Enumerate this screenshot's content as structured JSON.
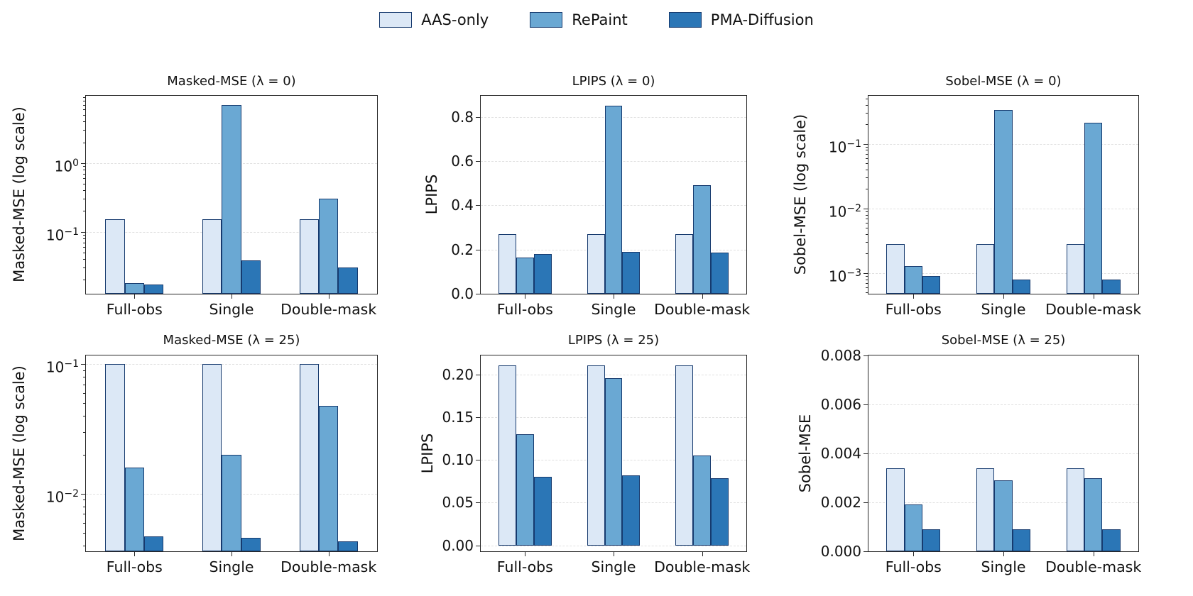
{
  "legend": {
    "position": "top-center",
    "items": [
      {
        "label": "AAS-only",
        "color": "#dce8f6"
      },
      {
        "label": "RePaint",
        "color": "#6aa8d3"
      },
      {
        "label": "PMA-Diffusion",
        "color": "#2b76b6"
      }
    ]
  },
  "colors": {
    "bar_edge": "#163a6e",
    "grid": "#e0e0e0",
    "spine": "#262626"
  },
  "chart_data": [
    {
      "type": "bar",
      "title": "Masked-MSE (λ = 0)",
      "ylabel": "Masked-MSE (log scale)",
      "xlabel": "",
      "yscale": "log",
      "grid": "horizontal-dashed",
      "categories": [
        "Full-obs",
        "Single",
        "Double-mask"
      ],
      "series": [
        {
          "name": "AAS-only",
          "values": [
            0.15,
            0.15,
            0.15
          ]
        },
        {
          "name": "RePaint",
          "values": [
            0.018,
            6.9,
            0.3
          ]
        },
        {
          "name": "PMA-Diffusion",
          "values": [
            0.017,
            0.038,
            0.03
          ]
        }
      ],
      "ylim": [
        0.0125,
        9.5
      ],
      "yticks": [
        {
          "v": 1,
          "label": "10^0"
        },
        {
          "v": 0.1,
          "label": "10^-1"
        }
      ]
    },
    {
      "type": "bar",
      "title": "LPIPS (λ = 0)",
      "ylabel": "LPIPS",
      "xlabel": "",
      "yscale": "linear",
      "grid": "horizontal-dashed",
      "categories": [
        "Full-obs",
        "Single",
        "Double-mask"
      ],
      "series": [
        {
          "name": "AAS-only",
          "values": [
            0.27,
            0.27,
            0.27
          ]
        },
        {
          "name": "RePaint",
          "values": [
            0.165,
            0.85,
            0.49
          ]
        },
        {
          "name": "PMA-Diffusion",
          "values": [
            0.18,
            0.19,
            0.185
          ]
        }
      ],
      "ylim": [
        0,
        0.895
      ],
      "yticks": [
        {
          "v": 0.8,
          "label": "0.8"
        },
        {
          "v": 0.6,
          "label": "0.6"
        },
        {
          "v": 0.4,
          "label": "0.4"
        },
        {
          "v": 0.2,
          "label": "0.2"
        },
        {
          "v": 0.0,
          "label": "0.0"
        }
      ]
    },
    {
      "type": "bar",
      "title": "Sobel-MSE (λ = 0)",
      "ylabel": "Sobel-MSE (log scale)",
      "xlabel": "",
      "yscale": "log",
      "grid": "horizontal-dashed",
      "categories": [
        "Full-obs",
        "Single",
        "Double-mask"
      ],
      "series": [
        {
          "name": "AAS-only",
          "values": [
            0.0028,
            0.0028,
            0.0028
          ]
        },
        {
          "name": "RePaint",
          "values": [
            0.0013,
            0.33,
            0.21
          ]
        },
        {
          "name": "PMA-Diffusion",
          "values": [
            0.0009,
            0.0008,
            0.0008
          ]
        }
      ],
      "ylim": [
        0.00048,
        0.55
      ],
      "yticks": [
        {
          "v": 0.1,
          "label": "10^-1"
        },
        {
          "v": 0.01,
          "label": "10^-2"
        },
        {
          "v": 0.001,
          "label": "10^-3"
        }
      ]
    },
    {
      "type": "bar",
      "title": "Masked-MSE (λ = 25)",
      "ylabel": "Masked-MSE (log scale)",
      "xlabel": "",
      "yscale": "log",
      "grid": "horizontal-dashed",
      "categories": [
        "Full-obs",
        "Single",
        "Double-mask"
      ],
      "series": [
        {
          "name": "AAS-only",
          "values": [
            0.1,
            0.1,
            0.1
          ]
        },
        {
          "name": "RePaint",
          "values": [
            0.016,
            0.02,
            0.048
          ]
        },
        {
          "name": "PMA-Diffusion",
          "values": [
            0.0047,
            0.0046,
            0.0043
          ]
        }
      ],
      "ylim": [
        0.0036,
        0.117
      ],
      "yticks": [
        {
          "v": 0.1,
          "label": "10^-1"
        },
        {
          "v": 0.01,
          "label": "10^-2"
        }
      ]
    },
    {
      "type": "bar",
      "title": "LPIPS (λ = 25)",
      "ylabel": "LPIPS",
      "xlabel": "",
      "yscale": "linear",
      "grid": "horizontal-dashed",
      "categories": [
        "Full-obs",
        "Single",
        "Double-mask"
      ],
      "series": [
        {
          "name": "AAS-only",
          "values": [
            0.211,
            0.211,
            0.211
          ]
        },
        {
          "name": "RePaint",
          "values": [
            0.13,
            0.196,
            0.105
          ]
        },
        {
          "name": "PMA-Diffusion",
          "values": [
            0.08,
            0.082,
            0.079
          ]
        }
      ],
      "ylim": [
        -0.007,
        0.2225
      ],
      "yticks": [
        {
          "v": 0.2,
          "label": "0.20"
        },
        {
          "v": 0.15,
          "label": "0.15"
        },
        {
          "v": 0.1,
          "label": "0.10"
        },
        {
          "v": 0.05,
          "label": "0.05"
        },
        {
          "v": 0.0,
          "label": "0.00"
        }
      ]
    },
    {
      "type": "bar",
      "title": "Sobel-MSE (λ = 25)",
      "ylabel": "Sobel-MSE",
      "xlabel": "",
      "yscale": "linear",
      "grid": "horizontal-dashed",
      "categories": [
        "Full-obs",
        "Single",
        "Double-mask"
      ],
      "series": [
        {
          "name": "AAS-only",
          "values": [
            0.0034,
            0.0034,
            0.0034
          ]
        },
        {
          "name": "RePaint",
          "values": [
            0.0019,
            0.0029,
            0.003
          ]
        },
        {
          "name": "PMA-Diffusion",
          "values": [
            0.0009,
            0.0009,
            0.0009
          ]
        }
      ],
      "ylim": [
        0,
        0.008
      ],
      "yticks": [
        {
          "v": 0.008,
          "label": "0.008"
        },
        {
          "v": 0.006,
          "label": "0.006"
        },
        {
          "v": 0.004,
          "label": "0.004"
        },
        {
          "v": 0.002,
          "label": "0.002"
        },
        {
          "v": 0.0,
          "label": "0.000"
        }
      ]
    }
  ]
}
